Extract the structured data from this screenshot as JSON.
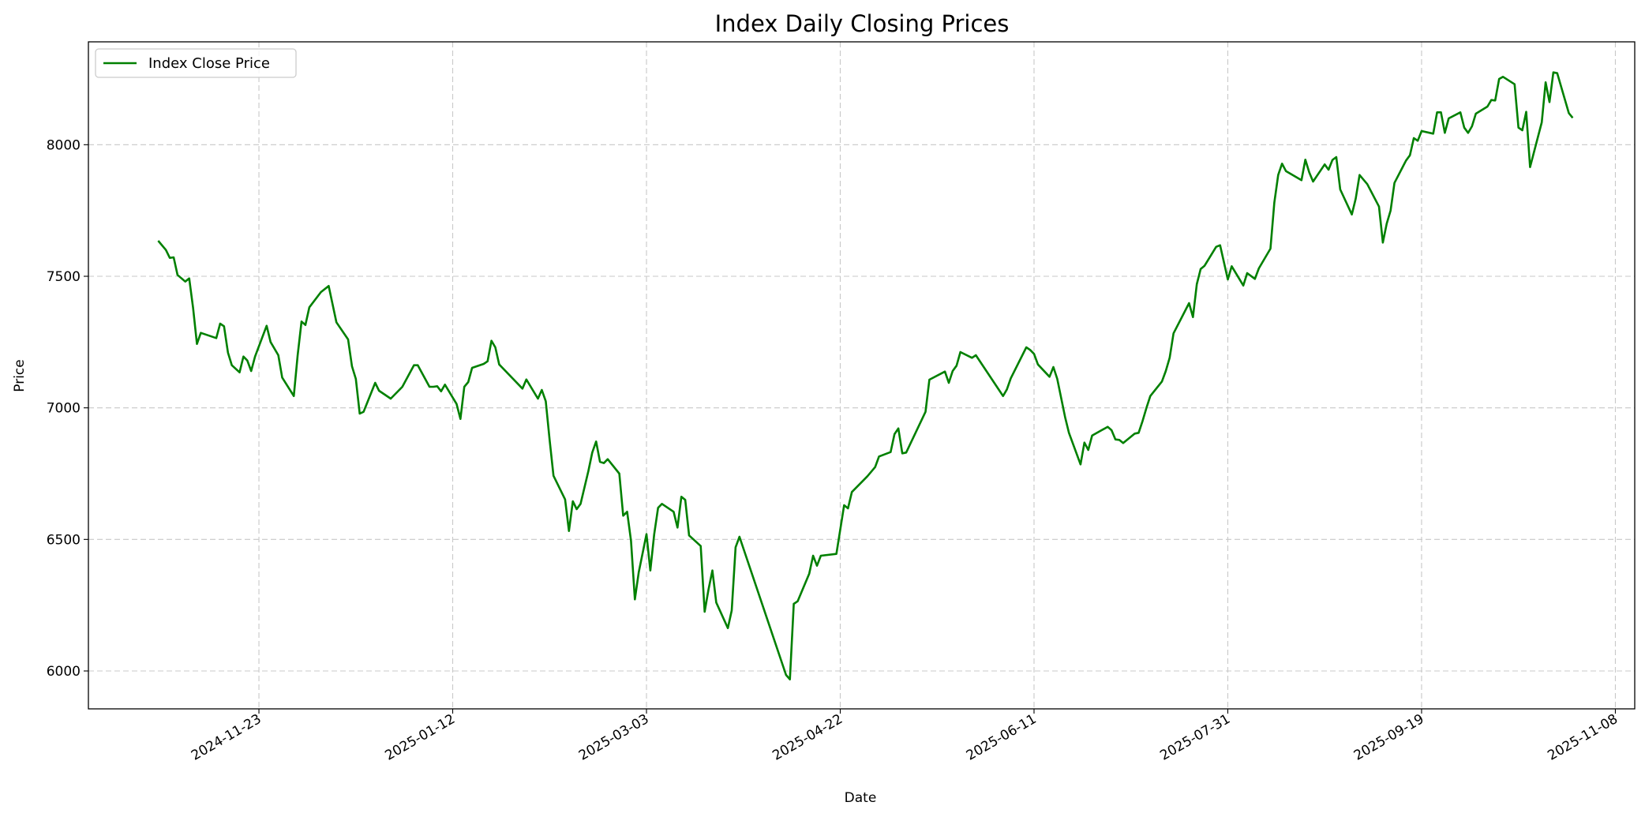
{
  "chart_data": {
    "type": "line",
    "title": "Index Daily Closing Prices",
    "xlabel": "Date",
    "ylabel": "Price",
    "xlim": [
      "2024-10-10",
      "2025-11-13"
    ],
    "ylim": [
      5856,
      8391
    ],
    "grid": true,
    "grid_style": "dashed",
    "legend_position": "top-left",
    "x_ticks": [
      "2024-11-23",
      "2025-01-12",
      "2025-03-03",
      "2025-04-22",
      "2025-06-11",
      "2025-07-31",
      "2025-09-19",
      "2025-11-08"
    ],
    "y_ticks": [
      6000,
      6500,
      7000,
      7500,
      8000
    ],
    "series": [
      {
        "name": "Index Close Price",
        "color": "#008000",
        "points": [
          [
            "2024-10-28",
            7635
          ],
          [
            "2024-10-30",
            7600
          ],
          [
            "2024-10-31",
            7570
          ],
          [
            "2024-11-01",
            7572
          ],
          [
            "2024-11-02",
            7505
          ],
          [
            "2024-11-04",
            7480
          ],
          [
            "2024-11-05",
            7492
          ],
          [
            "2024-11-06",
            7380
          ],
          [
            "2024-11-07",
            7243
          ],
          [
            "2024-11-08",
            7285
          ],
          [
            "2024-11-12",
            7265
          ],
          [
            "2024-11-13",
            7320
          ],
          [
            "2024-11-14",
            7310
          ],
          [
            "2024-11-15",
            7210
          ],
          [
            "2024-11-16",
            7162
          ],
          [
            "2024-11-18",
            7135
          ],
          [
            "2024-11-19",
            7195
          ],
          [
            "2024-11-20",
            7180
          ],
          [
            "2024-11-21",
            7140
          ],
          [
            "2024-11-22",
            7195
          ],
          [
            "2024-11-25",
            7312
          ],
          [
            "2024-11-26",
            7250
          ],
          [
            "2024-11-28",
            7200
          ],
          [
            "2024-11-29",
            7115
          ],
          [
            "2024-12-02",
            7045
          ],
          [
            "2024-12-03",
            7200
          ],
          [
            "2024-12-04",
            7328
          ],
          [
            "2024-12-05",
            7315
          ],
          [
            "2024-12-06",
            7382
          ],
          [
            "2024-12-09",
            7440
          ],
          [
            "2024-12-11",
            7463
          ],
          [
            "2024-12-13",
            7325
          ],
          [
            "2024-12-16",
            7260
          ],
          [
            "2024-12-17",
            7158
          ],
          [
            "2024-12-18",
            7110
          ],
          [
            "2024-12-19",
            6978
          ],
          [
            "2024-12-20",
            6985
          ],
          [
            "2024-12-23",
            7095
          ],
          [
            "2024-12-24",
            7065
          ],
          [
            "2024-12-27",
            7035
          ],
          [
            "2024-12-30",
            7080
          ],
          [
            "2025-01-02",
            7162
          ],
          [
            "2025-01-03",
            7162
          ],
          [
            "2025-01-06",
            7080
          ],
          [
            "2025-01-07",
            7080
          ],
          [
            "2025-01-08",
            7082
          ],
          [
            "2025-01-09",
            7063
          ],
          [
            "2025-01-10",
            7088
          ],
          [
            "2025-01-13",
            7015
          ],
          [
            "2025-01-14",
            6958
          ],
          [
            "2025-01-15",
            7080
          ],
          [
            "2025-01-16",
            7098
          ],
          [
            "2025-01-17",
            7152
          ],
          [
            "2025-01-20",
            7167
          ],
          [
            "2025-01-21",
            7177
          ],
          [
            "2025-01-22",
            7255
          ],
          [
            "2025-01-23",
            7230
          ],
          [
            "2025-01-24",
            7165
          ],
          [
            "2025-01-30",
            7073
          ],
          [
            "2025-01-31",
            7108
          ],
          [
            "2025-02-03",
            7035
          ],
          [
            "2025-02-04",
            7068
          ],
          [
            "2025-02-05",
            7025
          ],
          [
            "2025-02-06",
            6878
          ],
          [
            "2025-02-07",
            6742
          ],
          [
            "2025-02-10",
            6652
          ],
          [
            "2025-02-11",
            6532
          ],
          [
            "2025-02-12",
            6645
          ],
          [
            "2025-02-13",
            6615
          ],
          [
            "2025-02-14",
            6635
          ],
          [
            "2025-02-16",
            6760
          ],
          [
            "2025-02-17",
            6830
          ],
          [
            "2025-02-18",
            6872
          ],
          [
            "2025-02-19",
            6795
          ],
          [
            "2025-02-20",
            6790
          ],
          [
            "2025-02-21",
            6805
          ],
          [
            "2025-02-24",
            6750
          ],
          [
            "2025-02-25",
            6590
          ],
          [
            "2025-02-26",
            6605
          ],
          [
            "2025-02-27",
            6495
          ],
          [
            "2025-02-28",
            6272
          ],
          [
            "2025-03-01",
            6375
          ],
          [
            "2025-03-03",
            6520
          ],
          [
            "2025-03-04",
            6382
          ],
          [
            "2025-03-05",
            6520
          ],
          [
            "2025-03-06",
            6620
          ],
          [
            "2025-03-07",
            6635
          ],
          [
            "2025-03-10",
            6605
          ],
          [
            "2025-03-11",
            6545
          ],
          [
            "2025-03-12",
            6662
          ],
          [
            "2025-03-13",
            6650
          ],
          [
            "2025-03-14",
            6515
          ],
          [
            "2025-03-17",
            6475
          ],
          [
            "2025-03-18",
            6225
          ],
          [
            "2025-03-19",
            6310
          ],
          [
            "2025-03-20",
            6382
          ],
          [
            "2025-03-21",
            6260
          ],
          [
            "2025-03-24",
            6163
          ],
          [
            "2025-03-25",
            6230
          ],
          [
            "2025-03-26",
            6470
          ],
          [
            "2025-03-27",
            6510
          ],
          [
            "2025-04-08",
            5985
          ],
          [
            "2025-04-09",
            5968
          ],
          [
            "2025-04-10",
            6255
          ],
          [
            "2025-04-11",
            6265
          ],
          [
            "2025-04-14",
            6370
          ],
          [
            "2025-04-15",
            6438
          ],
          [
            "2025-04-16",
            6400
          ],
          [
            "2025-04-17",
            6438
          ],
          [
            "2025-04-21",
            6445
          ],
          [
            "2025-04-23",
            6630
          ],
          [
            "2025-04-24",
            6618
          ],
          [
            "2025-04-25",
            6680
          ],
          [
            "2025-04-28",
            6725
          ],
          [
            "2025-04-29",
            6740
          ],
          [
            "2025-05-01",
            6775
          ],
          [
            "2025-05-02",
            6815
          ],
          [
            "2025-05-05",
            6832
          ],
          [
            "2025-05-06",
            6900
          ],
          [
            "2025-05-07",
            6922
          ],
          [
            "2025-05-08",
            6827
          ],
          [
            "2025-05-09",
            6830
          ],
          [
            "2025-05-14",
            6985
          ],
          [
            "2025-05-15",
            7107
          ],
          [
            "2025-05-19",
            7138
          ],
          [
            "2025-05-20",
            7095
          ],
          [
            "2025-05-21",
            7140
          ],
          [
            "2025-05-22",
            7160
          ],
          [
            "2025-05-23",
            7212
          ],
          [
            "2025-05-26",
            7190
          ],
          [
            "2025-05-27",
            7200
          ],
          [
            "2025-06-03",
            7045
          ],
          [
            "2025-06-04",
            7070
          ],
          [
            "2025-06-05",
            7112
          ],
          [
            "2025-06-09",
            7230
          ],
          [
            "2025-06-10",
            7220
          ],
          [
            "2025-06-11",
            7205
          ],
          [
            "2025-06-12",
            7165
          ],
          [
            "2025-06-15",
            7118
          ],
          [
            "2025-06-16",
            7155
          ],
          [
            "2025-06-17",
            7110
          ],
          [
            "2025-06-19",
            6965
          ],
          [
            "2025-06-20",
            6905
          ],
          [
            "2025-06-23",
            6785
          ],
          [
            "2025-06-24",
            6868
          ],
          [
            "2025-06-25",
            6840
          ],
          [
            "2025-06-26",
            6895
          ],
          [
            "2025-06-30",
            6928
          ],
          [
            "2025-07-01",
            6915
          ],
          [
            "2025-07-02",
            6880
          ],
          [
            "2025-07-03",
            6878
          ],
          [
            "2025-07-04",
            6866
          ],
          [
            "2025-07-07",
            6902
          ],
          [
            "2025-07-08",
            6905
          ],
          [
            "2025-07-09",
            6950
          ],
          [
            "2025-07-10",
            7000
          ],
          [
            "2025-07-11",
            7045
          ],
          [
            "2025-07-14",
            7100
          ],
          [
            "2025-07-15",
            7140
          ],
          [
            "2025-07-16",
            7190
          ],
          [
            "2025-07-17",
            7283
          ],
          [
            "2025-07-21",
            7398
          ],
          [
            "2025-07-22",
            7345
          ],
          [
            "2025-07-23",
            7470
          ],
          [
            "2025-07-24",
            7528
          ],
          [
            "2025-07-25",
            7540
          ],
          [
            "2025-07-28",
            7612
          ],
          [
            "2025-07-29",
            7618
          ],
          [
            "2025-07-31",
            7488
          ],
          [
            "2025-08-01",
            7538
          ],
          [
            "2025-08-04",
            7465
          ],
          [
            "2025-08-05",
            7512
          ],
          [
            "2025-08-07",
            7490
          ],
          [
            "2025-08-08",
            7530
          ],
          [
            "2025-08-11",
            7605
          ],
          [
            "2025-08-12",
            7780
          ],
          [
            "2025-08-13",
            7885
          ],
          [
            "2025-08-14",
            7928
          ],
          [
            "2025-08-15",
            7900
          ],
          [
            "2025-08-19",
            7865
          ],
          [
            "2025-08-20",
            7943
          ],
          [
            "2025-08-21",
            7895
          ],
          [
            "2025-08-22",
            7860
          ],
          [
            "2025-08-25",
            7925
          ],
          [
            "2025-08-26",
            7905
          ],
          [
            "2025-08-27",
            7942
          ],
          [
            "2025-08-28",
            7953
          ],
          [
            "2025-08-29",
            7830
          ],
          [
            "2025-09-01",
            7735
          ],
          [
            "2025-09-02",
            7795
          ],
          [
            "2025-09-03",
            7885
          ],
          [
            "2025-09-05",
            7850
          ],
          [
            "2025-09-08",
            7765
          ],
          [
            "2025-09-09",
            7628
          ],
          [
            "2025-09-10",
            7700
          ],
          [
            "2025-09-11",
            7750
          ],
          [
            "2025-09-12",
            7855
          ],
          [
            "2025-09-15",
            7940
          ],
          [
            "2025-09-16",
            7960
          ],
          [
            "2025-09-17",
            8025
          ],
          [
            "2025-09-18",
            8015
          ],
          [
            "2025-09-19",
            8052
          ],
          [
            "2025-09-22",
            8042
          ],
          [
            "2025-09-23",
            8123
          ],
          [
            "2025-09-24",
            8123
          ],
          [
            "2025-09-25",
            8045
          ],
          [
            "2025-09-26",
            8100
          ],
          [
            "2025-09-29",
            8123
          ],
          [
            "2025-09-30",
            8065
          ],
          [
            "2025-10-01",
            8045
          ],
          [
            "2025-10-02",
            8070
          ],
          [
            "2025-10-03",
            8118
          ],
          [
            "2025-10-06",
            8145
          ],
          [
            "2025-10-07",
            8170
          ],
          [
            "2025-10-08",
            8168
          ],
          [
            "2025-10-09",
            8250
          ],
          [
            "2025-10-10",
            8258
          ],
          [
            "2025-10-13",
            8230
          ],
          [
            "2025-10-14",
            8065
          ],
          [
            "2025-10-15",
            8055
          ],
          [
            "2025-10-16",
            8125
          ],
          [
            "2025-10-17",
            7915
          ],
          [
            "2025-10-20",
            8085
          ],
          [
            "2025-10-21",
            8237
          ],
          [
            "2025-10-22",
            8162
          ],
          [
            "2025-10-23",
            8275
          ],
          [
            "2025-10-24",
            8272
          ],
          [
            "2025-10-27",
            8120
          ],
          [
            "2025-10-28",
            8102
          ]
        ]
      }
    ]
  }
}
